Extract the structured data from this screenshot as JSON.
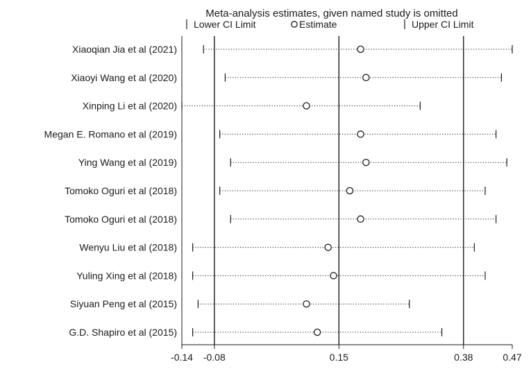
{
  "chart_data": {
    "type": "scatter",
    "title": "Meta-analysis estimates, given named study is omitted",
    "legend": {
      "position": "top",
      "items": [
        {
          "key": "lower",
          "label": "Lower CI Limit",
          "marker": "|"
        },
        {
          "key": "estimate",
          "label": "Estimate",
          "marker": "circle"
        },
        {
          "key": "upper",
          "label": "Upper CI Limit",
          "marker": "|"
        }
      ]
    },
    "x_ticks": [
      -0.14,
      -0.08,
      0.15,
      0.38,
      0.47
    ],
    "x_tick_labels": [
      "-0.14",
      "-0.08",
      "0.15",
      "0.38",
      "0.47"
    ],
    "reference_lines": [
      -0.08,
      0.15,
      0.38
    ],
    "xlim": [
      -0.14,
      0.47
    ],
    "grid": false,
    "studies": [
      {
        "label": "Xiaoqian Jia et al (2021)",
        "lower": -0.1,
        "estimate": 0.19,
        "upper": 0.47
      },
      {
        "label": "Xiaoyi Wang et al (2020)",
        "lower": -0.06,
        "estimate": 0.2,
        "upper": 0.45
      },
      {
        "label": "Xinping Li et al (2020)",
        "lower": -0.14,
        "estimate": 0.09,
        "upper": 0.3
      },
      {
        "label": "Megan E. Romano et al  (2019)",
        "lower": -0.07,
        "estimate": 0.19,
        "upper": 0.44
      },
      {
        "label": "Ying Wang et al (2019)",
        "lower": -0.05,
        "estimate": 0.2,
        "upper": 0.46
      },
      {
        "label": "Tomoko Oguri et al  (2018)",
        "lower": -0.07,
        "estimate": 0.17,
        "upper": 0.42
      },
      {
        "label": "Tomoko Oguri et al  (2018)",
        "lower": -0.05,
        "estimate": 0.19,
        "upper": 0.44
      },
      {
        "label": "Wenyu Liu et al (2018)",
        "lower": -0.12,
        "estimate": 0.13,
        "upper": 0.4
      },
      {
        "label": "Yuling Xing et al (2018)",
        "lower": -0.12,
        "estimate": 0.14,
        "upper": 0.42
      },
      {
        "label": "Siyuan Peng et al (2015)",
        "lower": -0.11,
        "estimate": 0.09,
        "upper": 0.28
      },
      {
        "label": "G.D. Shapiro et al (2015)",
        "lower": -0.12,
        "estimate": 0.11,
        "upper": 0.34
      }
    ]
  }
}
